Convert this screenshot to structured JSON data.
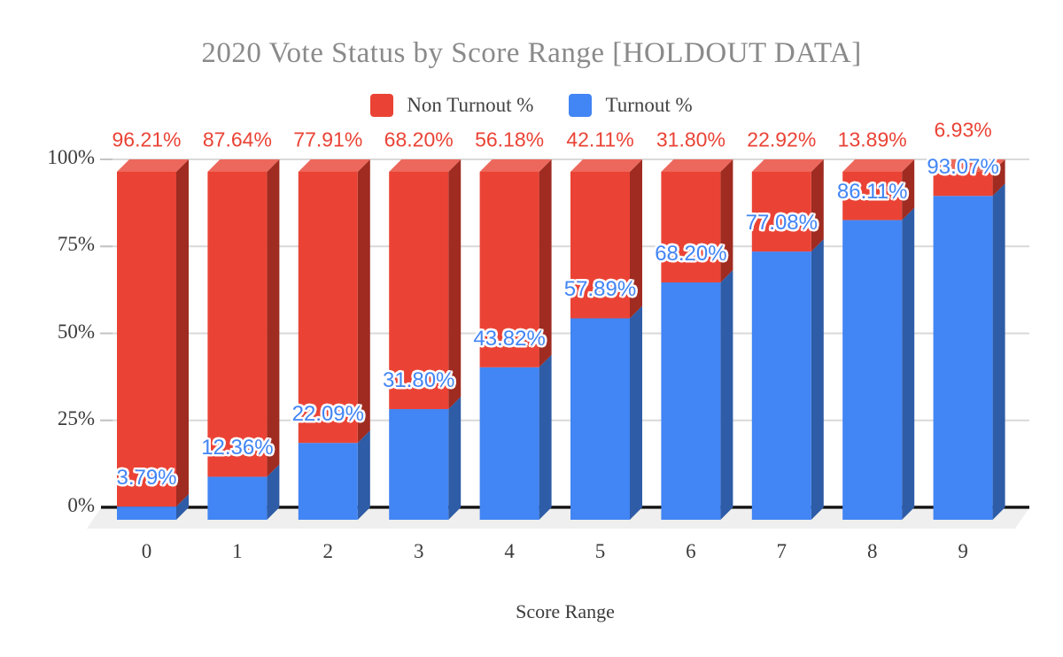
{
  "chart_data": {
    "type": "bar",
    "variant": "3d-stacked-column",
    "stacking": "percent",
    "title": "2020 Vote Status by Score Range [HOLDOUT DATA]",
    "xlabel": "Score Range",
    "ylabel": "",
    "categories": [
      "0",
      "1",
      "2",
      "3",
      "4",
      "5",
      "6",
      "7",
      "8",
      "9"
    ],
    "series": [
      {
        "name": "Non Turnout %",
        "color": "#EA4335",
        "side_color": "#9F2B21",
        "top_color": "#ED685C",
        "label_color": "#EA4335",
        "values": [
          96.21,
          87.64,
          77.91,
          68.2,
          56.18,
          42.11,
          31.8,
          22.92,
          13.89,
          6.93
        ],
        "labels": [
          "96.21%",
          "87.64%",
          "77.91%",
          "68.20%",
          "56.18%",
          "42.11%",
          "31.80%",
          "22.92%",
          "13.89%",
          "6.93%"
        ]
      },
      {
        "name": "Turnout %",
        "color": "#4285F4",
        "side_color": "#2E5CA6",
        "label_color": "#4285F4",
        "values": [
          3.79,
          12.36,
          22.09,
          31.8,
          43.82,
          57.89,
          68.2,
          77.08,
          86.11,
          93.07
        ],
        "labels": [
          "3.79%",
          "12.36%",
          "22.09%",
          "31.80%",
          "43.82%",
          "57.89%",
          "68.20%",
          "77.08%",
          "86.11%",
          "93.07%"
        ]
      }
    ],
    "y_ticks": [
      {
        "label": "100%",
        "value": 100
      },
      {
        "label": "75%",
        "value": 75
      },
      {
        "label": "50%",
        "value": 50
      },
      {
        "label": "25%",
        "value": 25
      },
      {
        "label": "0%",
        "value": 0
      }
    ],
    "ylim": [
      0,
      100
    ],
    "grid": true,
    "legend_position": "top",
    "gridline_color": "#D9D9D9",
    "axis_line_color": "#141414",
    "floor_color": "#EFEFEF",
    "title_color": "#8A8A8A"
  }
}
